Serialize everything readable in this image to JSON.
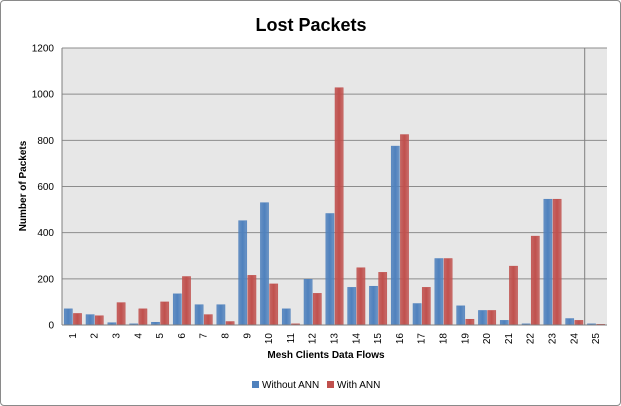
{
  "chart_data": {
    "type": "bar",
    "title": "Lost Packets",
    "xlabel": "Mesh Clients Data Flows",
    "ylabel": "Number of Packets",
    "ylim": [
      0,
      1200
    ],
    "yticks": [
      "0",
      "200",
      "400",
      "600",
      "800",
      "1000",
      "1200"
    ],
    "categories": [
      "1",
      "2",
      "3",
      "4",
      "5",
      "6",
      "7",
      "8",
      "9",
      "10",
      "11",
      "12",
      "13",
      "14",
      "15",
      "16",
      "17",
      "18",
      "19",
      "20",
      "21",
      "22",
      "23",
      "24",
      "25"
    ],
    "series": [
      {
        "name": "Without ANN",
        "color": "#4f81bd",
        "values": [
          70,
          45,
          10,
          5,
          12,
          135,
          88,
          88,
          452,
          530,
          70,
          198,
          483,
          163,
          168,
          775,
          93,
          288,
          83,
          63,
          20,
          5,
          545,
          28,
          5
        ]
      },
      {
        "name": "With ANN",
        "color": "#c0504d",
        "values": [
          50,
          40,
          97,
          70,
          100,
          210,
          45,
          15,
          215,
          178,
          5,
          137,
          1028,
          248,
          228,
          825,
          163,
          288,
          25,
          63,
          255,
          385,
          545,
          20,
          3
        ]
      }
    ],
    "grid": true,
    "plot_background": "#e7e7e7",
    "legend_position": "bottom"
  }
}
